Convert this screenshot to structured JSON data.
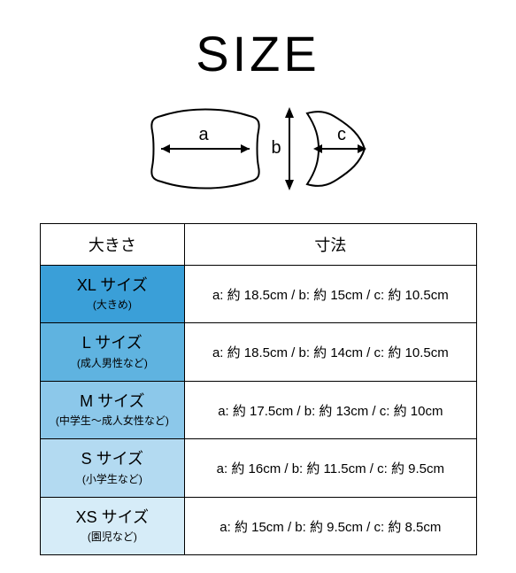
{
  "title": "SIZE",
  "diagram": {
    "labels": {
      "a": "a",
      "b": "b",
      "c": "c"
    },
    "stroke": "#000000",
    "fill": "#ffffff",
    "label_fontsize": 20
  },
  "table": {
    "header": {
      "size": "大きさ",
      "dimensions": "寸法"
    },
    "columns": {
      "size_width": 164,
      "dim_width": 330
    },
    "row_colors": [
      "#3a9fd8",
      "#5fb3e0",
      "#8cc8ea",
      "#b3daf1",
      "#d6ecf8"
    ],
    "rows": [
      {
        "name": "XL サイズ",
        "sub": "(大きめ)",
        "dims": "a: 約 18.5cm / b: 約 15cm / c: 約 10.5cm"
      },
      {
        "name": "L サイズ",
        "sub": "(成人男性など)",
        "dims": "a: 約 18.5cm / b: 約 14cm / c: 約 10.5cm"
      },
      {
        "name": "M サイズ",
        "sub": "(中学生～成人女性など)",
        "dims": "a: 約 17.5cm / b: 約 13cm / c: 約 10cm"
      },
      {
        "name": "S サイズ",
        "sub": "(小学生など)",
        "dims": "a: 約 16cm / b: 約 11.5cm / c: 約 9.5cm"
      },
      {
        "name": "XS サイズ",
        "sub": "(園児など)",
        "dims": "a: 約 15cm / b: 約 9.5cm / c: 約 8.5cm"
      }
    ]
  },
  "colors": {
    "background": "#ffffff",
    "text": "#000000",
    "border": "#000000"
  }
}
